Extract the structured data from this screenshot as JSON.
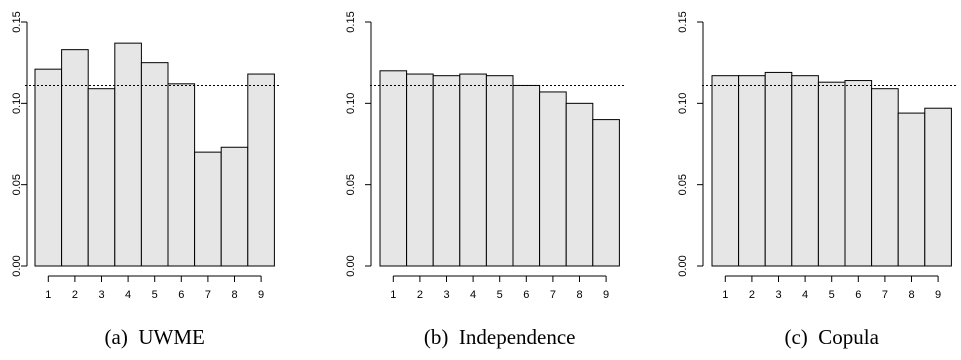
{
  "chart_data": [
    {
      "type": "bar",
      "caption": "(a)  UWME",
      "categories": [
        "1",
        "2",
        "3",
        "4",
        "5",
        "6",
        "7",
        "8",
        "9"
      ],
      "values": [
        0.121,
        0.133,
        0.109,
        0.137,
        0.125,
        0.112,
        0.07,
        0.073,
        0.118
      ],
      "reference_line": 0.111,
      "ylim": [
        0,
        0.15
      ],
      "yticks": [
        "0.00",
        "0.05",
        "0.10",
        "0.15"
      ],
      "xlabel": "",
      "ylabel": ""
    },
    {
      "type": "bar",
      "caption": "(b)  Independence",
      "categories": [
        "1",
        "2",
        "3",
        "4",
        "5",
        "6",
        "7",
        "8",
        "9"
      ],
      "values": [
        0.12,
        0.118,
        0.117,
        0.118,
        0.117,
        0.111,
        0.107,
        0.1,
        0.09
      ],
      "reference_line": 0.111,
      "ylim": [
        0,
        0.15
      ],
      "yticks": [
        "0.00",
        "0.05",
        "0.10",
        "0.15"
      ],
      "xlabel": "",
      "ylabel": ""
    },
    {
      "type": "bar",
      "caption": "(c)  Copula",
      "categories": [
        "1",
        "2",
        "3",
        "4",
        "5",
        "6",
        "7",
        "8",
        "9"
      ],
      "values": [
        0.117,
        0.117,
        0.119,
        0.117,
        0.113,
        0.114,
        0.109,
        0.094,
        0.097
      ],
      "reference_line": 0.111,
      "ylim": [
        0,
        0.15
      ],
      "yticks": [
        "0.00",
        "0.05",
        "0.10",
        "0.15"
      ],
      "xlabel": "",
      "ylabel": ""
    }
  ]
}
